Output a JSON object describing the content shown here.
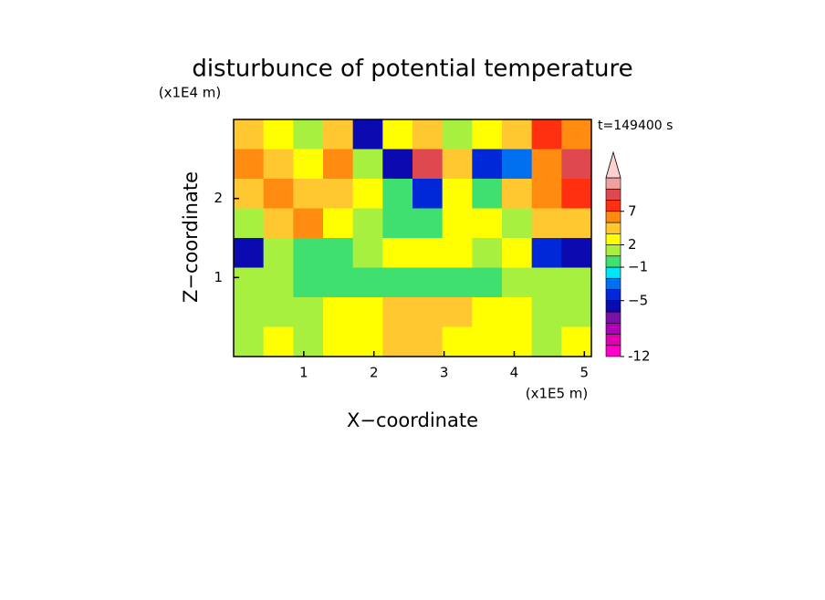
{
  "chart_data": {
    "type": "contour",
    "title": "disturbunce of potential temperature",
    "x_label": "X−coordinate",
    "y_label": "Z−coordinate",
    "x_unit": "(x1E5 m)",
    "y_unit": "(x1E4 m)",
    "annotation": "t=149400 s",
    "xlim": [
      0,
      5.1
    ],
    "ylim": [
      0,
      3
    ],
    "xticks": [
      1,
      2,
      3,
      4,
      5
    ],
    "yticks": [
      1,
      2
    ],
    "z": [
      [
        3,
        2,
        1,
        3,
        -6,
        2,
        3,
        1,
        2,
        3,
        7,
        5
      ],
      [
        5,
        3,
        2,
        5,
        1,
        -6,
        9,
        3,
        -5,
        -3,
        5,
        9
      ],
      [
        3,
        5,
        3,
        3,
        2,
        -1,
        -5,
        2,
        -1,
        3,
        5,
        7
      ],
      [
        1,
        3,
        5,
        2,
        1,
        -1,
        -1,
        2,
        2,
        1,
        3,
        3
      ],
      [
        -6,
        1,
        -1,
        -1,
        1,
        2,
        2,
        2,
        1,
        2,
        -5,
        -6
      ],
      [
        1,
        1,
        -1,
        -1,
        -1,
        -1,
        -1,
        -1,
        -1,
        1,
        1,
        1
      ],
      [
        1,
        1,
        1,
        2,
        2,
        3,
        3,
        3,
        2,
        2,
        1,
        1
      ],
      [
        1,
        2,
        1,
        2,
        2,
        3,
        3,
        2,
        2,
        2,
        1,
        2
      ]
    ],
    "levels": [
      -12,
      -10,
      -8,
      -7,
      -6,
      -5,
      -3,
      -2,
      -1,
      1,
      2,
      3,
      5,
      7,
      9,
      11,
      13
    ],
    "colors": [
      "#ff00c8",
      "#e000b0",
      "#b000b8",
      "#7a10a8",
      "#0a0ab0",
      "#0028d8",
      "#0070f0",
      "#00e4ff",
      "#40e070",
      "#a8f040",
      "#ffff00",
      "#ffc830",
      "#ff8c10",
      "#ff3010",
      "#e04850",
      "#f0a0a0",
      "#ffd0d0"
    ],
    "colorbar_ticks": [
      -12,
      {
        "value": -5,
        "label": "−5"
      },
      {
        "value": -1,
        "label": "−1"
      },
      2,
      7
    ]
  }
}
